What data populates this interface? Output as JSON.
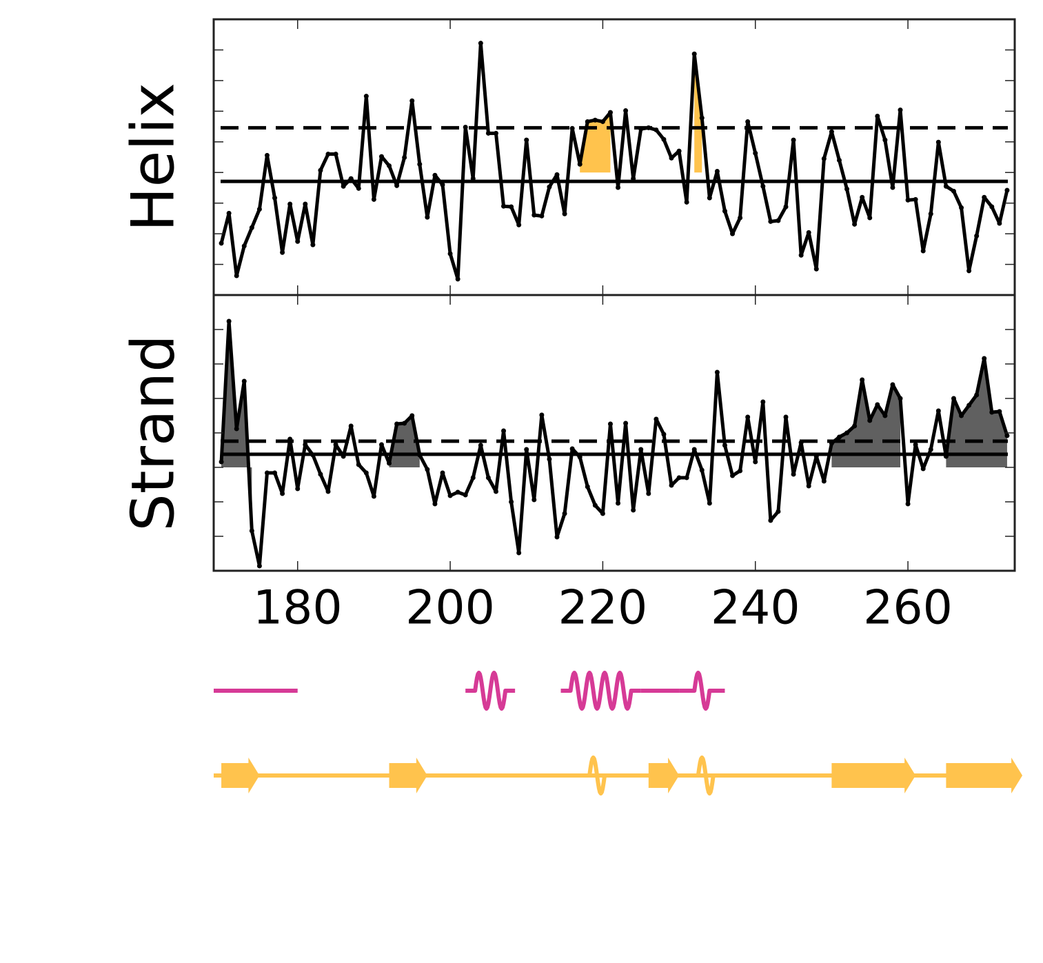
{
  "chart_data": [
    {
      "type": "line",
      "ylabel": "Helix",
      "xlim": [
        169,
        274
      ],
      "ylim": [
        0,
        9
      ],
      "yticks": [
        1,
        2,
        3,
        4,
        5,
        6,
        7,
        8
      ],
      "xticks": [
        180,
        200,
        220,
        240,
        260
      ],
      "xtick_labels": false,
      "color": "#000000",
      "x": [
        170,
        171,
        172,
        173,
        174,
        175,
        176,
        177,
        178,
        179,
        180,
        181,
        182,
        183,
        184,
        185,
        186,
        187,
        188,
        189,
        190,
        191,
        192,
        193,
        194,
        195,
        196,
        197,
        198,
        199,
        200,
        201,
        202,
        203,
        204,
        205,
        206,
        207,
        208,
        209,
        210,
        211,
        212,
        213,
        214,
        215,
        216,
        217,
        218,
        219,
        220,
        221,
        222,
        223,
        224,
        225,
        226,
        227,
        228,
        229,
        230,
        231,
        232,
        233,
        234,
        235,
        236,
        237,
        238,
        239,
        240,
        241,
        242,
        243,
        244,
        245,
        246,
        247,
        248,
        249,
        250,
        251,
        252,
        253,
        254,
        255,
        256,
        257,
        258,
        259,
        260,
        261,
        262,
        263,
        264,
        265,
        266,
        267,
        268,
        269,
        270,
        271,
        272,
        273
      ],
      "values": [
        1.69,
        2.67,
        0.63,
        1.6,
        2.2,
        2.8,
        4.56,
        3.17,
        1.39,
        2.97,
        1.75,
        2.97,
        1.64,
        4.07,
        4.6,
        4.6,
        3.55,
        3.8,
        3.48,
        6.49,
        3.12,
        4.52,
        4.22,
        3.57,
        4.49,
        6.34,
        4.27,
        2.54,
        3.91,
        3.6,
        1.35,
        0.52,
        5.48,
        3.8,
        8.22,
        5.28,
        5.28,
        2.9,
        2.88,
        2.29,
        5.06,
        2.61,
        2.58,
        3.53,
        3.93,
        2.65,
        5.44,
        4.27,
        5.66,
        5.71,
        5.66,
        5.96,
        3.51,
        6.02,
        3.8,
        5.42,
        5.46,
        5.39,
        5.08,
        4.47,
        4.7,
        3.03,
        7.87,
        5.78,
        3.17,
        4.04,
        2.74,
        2.0,
        2.52,
        5.66,
        4.63,
        3.55,
        2.4,
        2.43,
        2.88,
        5.06,
        1.3,
        2.04,
        0.85,
        4.45,
        5.33,
        4.4,
        3.46,
        2.31,
        3.19,
        2.52,
        5.84,
        5.06,
        3.51,
        6.04,
        3.1,
        3.12,
        1.44,
        2.65,
        4.99,
        3.55,
        3.39,
        2.85,
        0.79,
        1.93,
        3.19,
        2.88,
        2.34,
        3.42
      ],
      "reference_lines": [
        {
          "value": 3.71,
          "style": "solid"
        },
        {
          "value": 5.46,
          "style": "dashed"
        }
      ],
      "fill": {
        "base": 4,
        "color": "#ffc34d",
        "ranges": [
          [
            217,
            221
          ],
          [
            232,
            233
          ]
        ]
      }
    },
    {
      "type": "line",
      "ylabel": "Strand",
      "xlim": [
        169,
        274
      ],
      "ylim": [
        0,
        8
      ],
      "yticks": [
        1,
        2,
        3,
        4,
        5,
        6,
        7
      ],
      "xticks": [
        180,
        200,
        220,
        240,
        260
      ],
      "xtick_labels": true,
      "color": "#000000",
      "x": [
        170,
        171,
        172,
        173,
        174,
        175,
        176,
        177,
        178,
        179,
        180,
        181,
        182,
        183,
        184,
        185,
        186,
        187,
        188,
        189,
        190,
        191,
        192,
        193,
        194,
        195,
        196,
        197,
        198,
        199,
        200,
        201,
        202,
        203,
        204,
        205,
        206,
        207,
        208,
        209,
        210,
        211,
        212,
        213,
        214,
        215,
        216,
        217,
        218,
        219,
        220,
        221,
        222,
        223,
        224,
        225,
        226,
        227,
        228,
        229,
        230,
        231,
        232,
        233,
        234,
        235,
        236,
        237,
        238,
        239,
        240,
        241,
        242,
        243,
        244,
        245,
        246,
        247,
        248,
        249,
        250,
        251,
        252,
        253,
        254,
        255,
        256,
        257,
        258,
        259,
        260,
        261,
        262,
        263,
        264,
        265,
        266,
        267,
        268,
        269,
        270,
        271,
        272,
        273
      ],
      "values": [
        3.16,
        7.24,
        4.12,
        5.5,
        1.16,
        0.14,
        2.84,
        2.84,
        2.24,
        3.82,
        2.38,
        3.66,
        3.36,
        2.8,
        2.3,
        3.66,
        3.32,
        4.2,
        3.08,
        2.84,
        2.16,
        3.66,
        3.12,
        4.26,
        4.28,
        4.5,
        3.36,
        2.94,
        1.94,
        2.84,
        2.18,
        2.28,
        2.2,
        2.7,
        3.64,
        2.7,
        2.3,
        4.06,
        2.0,
        0.52,
        3.52,
        2.06,
        4.52,
        3.24,
        0.98,
        1.66,
        3.54,
        3.3,
        2.44,
        1.9,
        1.66,
        4.26,
        1.96,
        4.28,
        1.76,
        3.52,
        2.24,
        4.4,
        3.96,
        2.48,
        2.7,
        2.7,
        3.52,
        2.92,
        1.96,
        5.76,
        3.64,
        2.76,
        2.9,
        4.46,
        3.16,
        4.9,
        1.46,
        1.72,
        4.46,
        2.8,
        3.72,
        2.46,
        3.32,
        2.6,
        3.7,
        3.88,
        4.0,
        4.2,
        5.54,
        4.36,
        4.82,
        4.5,
        5.4,
        5.0,
        1.94,
        3.66,
        2.96,
        3.52,
        4.64,
        3.32,
        5.0,
        4.5,
        4.8,
        5.1,
        6.16,
        4.6,
        4.62,
        3.92
      ],
      "reference_lines": [
        {
          "value": 3.38,
          "style": "solid"
        },
        {
          "value": 3.76,
          "style": "dashed"
        }
      ],
      "fill": {
        "base": 3,
        "color": "#606060",
        "ranges": [
          [
            170,
            174
          ],
          [
            192,
            196
          ],
          [
            250,
            259
          ],
          [
            265,
            273
          ]
        ]
      }
    }
  ],
  "structure_tracks": [
    {
      "color": "#d63a96",
      "elements": [
        {
          "type": "coil",
          "start": 169,
          "end": 180
        },
        {
          "type": "helix",
          "start": 202,
          "end": 208.5
        },
        {
          "type": "helix",
          "start": 214.5,
          "end": 225
        },
        {
          "type": "coil",
          "start": 225,
          "end": 230
        },
        {
          "type": "helix",
          "start": 230,
          "end": 236
        }
      ]
    },
    {
      "color": "#ffc34d",
      "elements": [
        {
          "type": "coil",
          "start": 169,
          "end": 274
        },
        {
          "type": "strand",
          "start": 170,
          "end": 175
        },
        {
          "type": "strand",
          "start": 192,
          "end": 197
        },
        {
          "type": "helix",
          "start": 216.5,
          "end": 222
        },
        {
          "type": "strand",
          "start": 226,
          "end": 230
        },
        {
          "type": "helix",
          "start": 231,
          "end": 236
        },
        {
          "type": "strand",
          "start": 250,
          "end": 261
        },
        {
          "type": "strand",
          "start": 265,
          "end": 275
        }
      ]
    }
  ]
}
